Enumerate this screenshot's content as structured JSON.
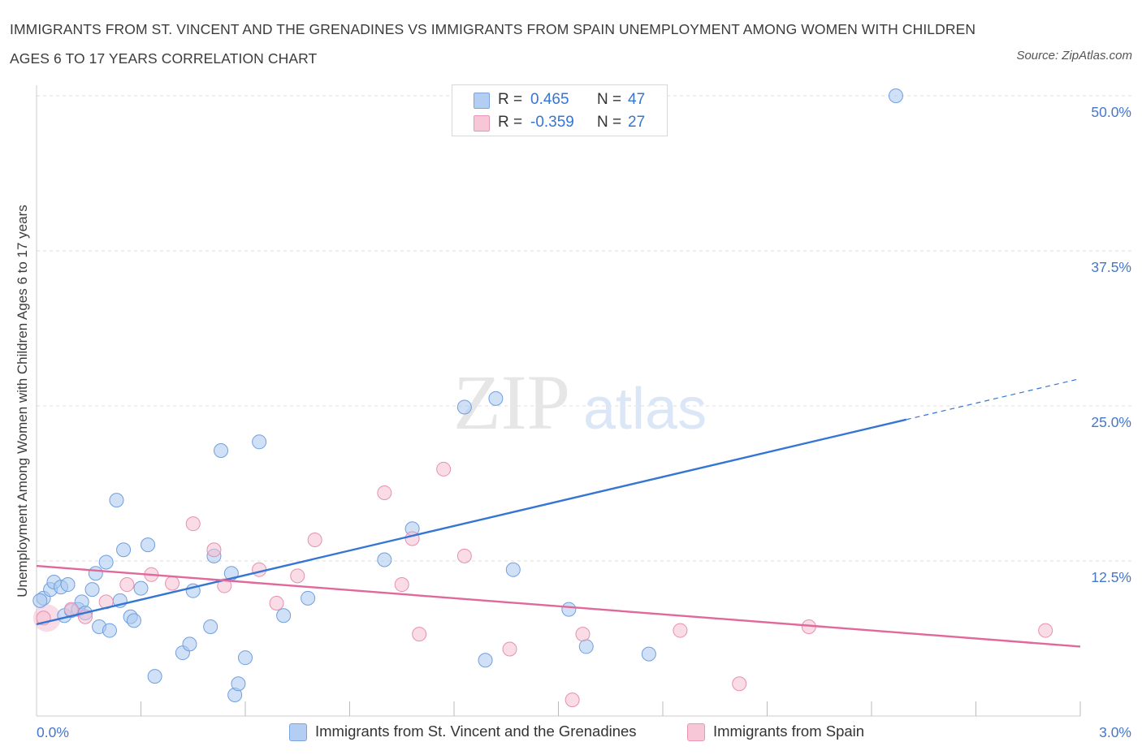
{
  "title": "IMMIGRANTS FROM ST. VINCENT AND THE GRENADINES VS IMMIGRANTS FROM SPAIN UNEMPLOYMENT AMONG WOMEN WITH CHILDREN AGES 6 TO 17 YEARS CORRELATION CHART",
  "source": "Source: ZipAtlas.com",
  "watermark": {
    "zip": "ZIP",
    "atlas": "atlas"
  },
  "colors": {
    "blue": "#3575d3",
    "blue_fill": "#aac8f0",
    "pink": "#e0689a",
    "pink_fill": "#f6bfd2",
    "tick_text": "#4477cc",
    "grid": "#dddddd"
  },
  "legend": {
    "rows": [
      {
        "r_label": "R =",
        "r_value": "0.465",
        "n_label": "N =",
        "n_value": "47"
      },
      {
        "r_label": "R =",
        "r_value": "-0.359",
        "n_label": "N =",
        "n_value": "27"
      }
    ]
  },
  "bottom_legend": [
    "Immigrants from St. Vincent and the Grenadines",
    "Immigrants from Spain"
  ],
  "chart_data": {
    "type": "scatter",
    "title": "IMMIGRANTS FROM ST. VINCENT AND THE GRENADINES VS IMMIGRANTS FROM SPAIN UNEMPLOYMENT AMONG WOMEN WITH CHILDREN AGES 6 TO 17 YEARS CORRELATION CHART",
    "xlabel": "",
    "ylabel": "Unemployment Among Women with Children Ages 6 to 17 years",
    "xlim": [
      0,
      3.0
    ],
    "ylim": [
      0,
      50.0
    ],
    "x_tick_labels": [
      "0.0%",
      "3.0%"
    ],
    "y_ticks": [
      12.5,
      25.0,
      37.5,
      50.0
    ],
    "y_tick_labels": [
      "12.5%",
      "25.0%",
      "37.5%",
      "50.0%"
    ],
    "grid": true,
    "legend_position": "top-center",
    "series": [
      {
        "name": "Immigrants from St. Vincent and the Grenadines",
        "color": "#3575d3",
        "points": [
          [
            0.02,
            9.5
          ],
          [
            0.04,
            10.2
          ],
          [
            0.05,
            10.8
          ],
          [
            0.07,
            10.4
          ],
          [
            0.09,
            10.6
          ],
          [
            0.08,
            8.1
          ],
          [
            0.1,
            8.5
          ],
          [
            0.12,
            8.6
          ],
          [
            0.13,
            9.2
          ],
          [
            0.14,
            8.3
          ],
          [
            0.16,
            10.2
          ],
          [
            0.17,
            11.5
          ],
          [
            0.18,
            7.2
          ],
          [
            0.2,
            12.4
          ],
          [
            0.21,
            6.9
          ],
          [
            0.23,
            17.4
          ],
          [
            0.24,
            9.3
          ],
          [
            0.25,
            13.4
          ],
          [
            0.27,
            8.0
          ],
          [
            0.28,
            7.7
          ],
          [
            0.3,
            10.3
          ],
          [
            0.32,
            13.8
          ],
          [
            0.34,
            3.2
          ],
          [
            0.42,
            5.1
          ],
          [
            0.44,
            5.8
          ],
          [
            0.45,
            10.1
          ],
          [
            0.5,
            7.2
          ],
          [
            0.51,
            12.9
          ],
          [
            0.53,
            21.4
          ],
          [
            0.56,
            11.5
          ],
          [
            0.57,
            1.7
          ],
          [
            0.58,
            2.6
          ],
          [
            0.6,
            4.7
          ],
          [
            0.64,
            22.1
          ],
          [
            0.71,
            8.1
          ],
          [
            0.78,
            9.5
          ],
          [
            1.0,
            12.6
          ],
          [
            1.08,
            15.1
          ],
          [
            1.23,
            24.9
          ],
          [
            1.29,
            4.5
          ],
          [
            1.32,
            25.6
          ],
          [
            1.37,
            11.8
          ],
          [
            1.53,
            8.6
          ],
          [
            1.58,
            5.6
          ],
          [
            1.76,
            5.0
          ],
          [
            2.47,
            50.0
          ],
          [
            0.01,
            9.3
          ]
        ],
        "trend": {
          "x": [
            0.0,
            2.5
          ],
          "y": [
            7.4,
            23.9
          ],
          "extended_x": [
            0.0,
            3.0
          ],
          "extended_y": [
            7.4,
            27.2
          ]
        }
      },
      {
        "name": "Immigrants from Spain",
        "color": "#e0689a",
        "points": [
          [
            0.02,
            7.9
          ],
          [
            0.1,
            8.6
          ],
          [
            0.14,
            8.0
          ],
          [
            0.2,
            9.2
          ],
          [
            0.26,
            10.6
          ],
          [
            0.33,
            11.4
          ],
          [
            0.39,
            10.7
          ],
          [
            0.45,
            15.5
          ],
          [
            0.51,
            13.4
          ],
          [
            0.54,
            10.5
          ],
          [
            0.64,
            11.8
          ],
          [
            0.69,
            9.1
          ],
          [
            0.75,
            11.3
          ],
          [
            0.8,
            14.2
          ],
          [
            1.0,
            18.0
          ],
          [
            1.05,
            10.6
          ],
          [
            1.08,
            14.3
          ],
          [
            1.1,
            6.6
          ],
          [
            1.17,
            19.9
          ],
          [
            1.23,
            12.9
          ],
          [
            1.36,
            5.4
          ],
          [
            1.54,
            1.3
          ],
          [
            1.57,
            6.6
          ],
          [
            1.85,
            6.9
          ],
          [
            2.02,
            2.6
          ],
          [
            2.22,
            7.2
          ],
          [
            2.9,
            6.9
          ]
        ],
        "trend": {
          "x": [
            0.0,
            3.0
          ],
          "y": [
            12.1,
            5.6
          ]
        }
      }
    ]
  }
}
